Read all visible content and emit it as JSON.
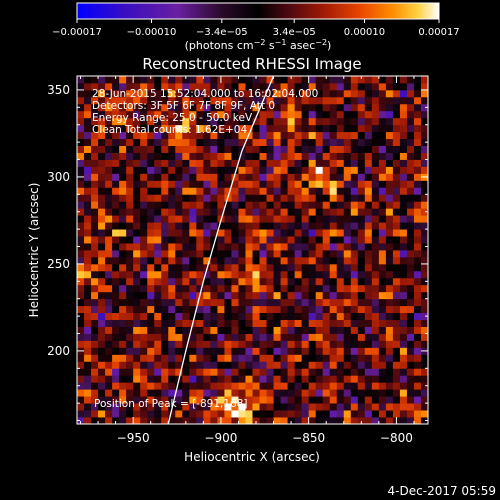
{
  "chart_data": {
    "type": "heatmap",
    "title": "Reconstructed RHESSI Image",
    "xlabel": "Heliocentric X (arcsec)",
    "ylabel": "Heliocentric Y (arcsec)",
    "xlim": [
      -982,
      -782
    ],
    "ylim": [
      158,
      358
    ],
    "x_ticks": [
      -950,
      -900,
      -850,
      -800
    ],
    "x_tick_labels": [
      "−950",
      "−900",
      "−850",
      "−800"
    ],
    "y_ticks": [
      200,
      250,
      300,
      350
    ],
    "y_tick_labels": [
      "200",
      "250",
      "300",
      "350"
    ],
    "colorbar": {
      "range": [
        -0.00017,
        0.00017
      ],
      "ticks": [
        -0.00017,
        -0.0001,
        -3.4e-05,
        3.4e-05,
        0.0001,
        0.00017
      ],
      "tick_labels": [
        "−0.00017",
        "−0.00010",
        "−3.4e−05",
        "3.4e−05",
        "0.00010",
        "0.00017"
      ],
      "unit_parts": [
        "(photons cm",
        "−2",
        " s",
        "−1",
        " asec",
        "−2",
        ")"
      ],
      "palette": [
        "#0000ff",
        "#3c0fbf",
        "#6a1fa0",
        "#2a0a2a",
        "#000000",
        "#4a0810",
        "#a01a05",
        "#e84400",
        "#ff8c00",
        "#ffd040",
        "#ffffff"
      ]
    },
    "annotations": [
      "28-Jun-2015 15:52:04.000 to 16:02:04.000",
      "Detectors: 3F 5F 6F 7F 8F 9F, Att 0",
      "Energy Range: 25.0 - 50.0 keV",
      "Clean    Total counts: 1.62E+04"
    ],
    "peak_label": "Position of Peak = [-891,168]",
    "peak": [
      -891,
      168
    ],
    "limb_curve": [
      [
        -930,
        158
      ],
      [
        -920,
        200
      ],
      [
        -910,
        240
      ],
      [
        -900,
        275
      ],
      [
        -888,
        315
      ],
      [
        -870,
        358
      ]
    ],
    "hotspots": [
      {
        "x": -891,
        "y": 168,
        "value": 0.00017
      },
      {
        "x": -920,
        "y": 330,
        "value": 0.0001
      },
      {
        "x": -843,
        "y": 300,
        "value": 0.00012
      },
      {
        "x": -960,
        "y": 335,
        "value": 9e-05
      },
      {
        "x": -880,
        "y": 240,
        "value": 8e-05
      },
      {
        "x": -965,
        "y": 275,
        "value": 7e-05
      },
      {
        "x": -858,
        "y": 330,
        "value": 8e-05
      },
      {
        "x": -975,
        "y": 240,
        "value": 6e-05
      }
    ]
  },
  "footer": {
    "timestamp": "4-Dec-2017 05:59"
  }
}
